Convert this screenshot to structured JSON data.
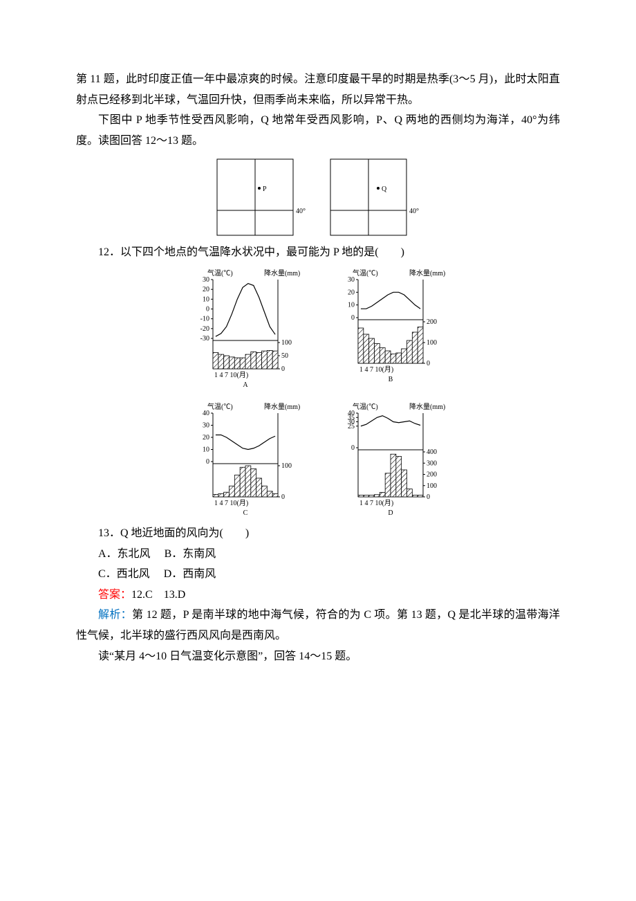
{
  "paragraphs": {
    "p1": "第 11 题，此时印度正值一年中最凉爽的时候。注意印度最干旱的时期是热季(3～5 月)，此时太阳直射点已经移到北半球，气温回升快，但雨季尚未来临，所以异常干热。",
    "p2": "下图中 P 地季节性受西风影响，Q 地常年受西风影响，P、Q 两地的西侧均为海洋，40°为纬度。读图回答 12～13 题。"
  },
  "map_diagram": {
    "latitude_label": "40°",
    "point_P": "P",
    "point_Q": "Q",
    "box_size": 110,
    "line_color": "#000000",
    "box_stroke": "#000000",
    "box_fill": "#ffffff"
  },
  "q12": {
    "stem": "12．以下四个地点的气温降水状况中，最可能为 P 地的是(　　)"
  },
  "charts_labels": {
    "temp_axis": "气温(℃)",
    "precip_axis": "降水量(mm)",
    "month_axis": "1  4  7 10(月)",
    "A": "A",
    "B": "B",
    "C": "C",
    "D": "D"
  },
  "chart_A": {
    "temp_ticks": [
      "30",
      "20",
      "10",
      "0",
      "-10",
      "-20",
      "-30"
    ],
    "precip_ticks": [
      "100",
      "50",
      "0"
    ],
    "temp_values": [
      -28,
      -25,
      -18,
      -5,
      10,
      22,
      26,
      24,
      12,
      -3,
      -18,
      -26
    ],
    "precip_values": [
      62,
      55,
      50,
      45,
      42,
      42,
      55,
      65,
      62,
      68,
      70,
      68
    ],
    "line_color": "#000000",
    "bar_fill": "#ffffff",
    "hatch_color": "#000000",
    "axis_color": "#000000"
  },
  "chart_B": {
    "temp_ticks": [
      "30",
      "20",
      "10",
      "0"
    ],
    "precip_ticks": [
      "200",
      "100",
      "0"
    ],
    "temp_values": [
      7,
      7,
      9,
      12,
      15,
      18,
      20,
      20,
      18,
      14,
      10,
      7
    ],
    "precip_values": [
      170,
      140,
      120,
      95,
      75,
      60,
      45,
      50,
      70,
      110,
      150,
      175
    ],
    "line_color": "#000000"
  },
  "chart_C": {
    "temp_ticks": [
      "40",
      "30",
      "20",
      "10",
      "0"
    ],
    "precip_ticks": [
      "100",
      "0"
    ],
    "temp_values": [
      22,
      22,
      20,
      17,
      14,
      11,
      10,
      11,
      13,
      16,
      19,
      21
    ],
    "precip_values": [
      8,
      10,
      15,
      35,
      70,
      95,
      100,
      90,
      60,
      35,
      18,
      10
    ],
    "line_color": "#000000"
  },
  "chart_D": {
    "temp_ticks": [
      "40",
      "35",
      "30",
      "25",
      "0"
    ],
    "precip_ticks": [
      "400",
      "300",
      "200",
      "100",
      "0"
    ],
    "temp_values": [
      25,
      27,
      31,
      35,
      37,
      34,
      30,
      29,
      30,
      31,
      28,
      26
    ],
    "precip_values": [
      15,
      15,
      15,
      20,
      40,
      210,
      380,
      360,
      240,
      70,
      15,
      15
    ],
    "line_color": "#000000"
  },
  "q13": {
    "stem": "13．Q 地近地面的风向为(　　)",
    "optA": "A．东北风",
    "optB": "B．东南风",
    "optC": "C．西北风",
    "optD": "D．西南风"
  },
  "answer": {
    "label": "答案：",
    "text": "12.C　13.D"
  },
  "explain": {
    "label": "解析：",
    "text": "第 12 题，P 是南半球的地中海气候，符合的为 C 项。第 13 题，Q 是北半球的温带海洋性气候，北半球的盛行西风风向是西南风。"
  },
  "p_last": "读“某月 4～10 日气温变化示意图”，回答 14～15 题。"
}
